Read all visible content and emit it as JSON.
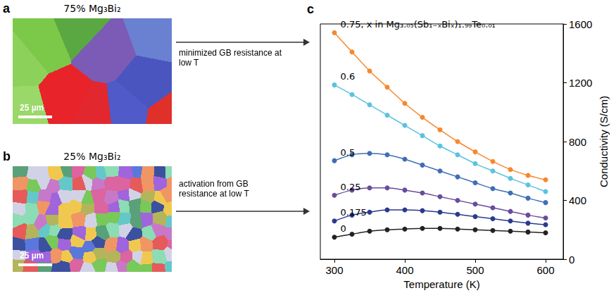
{
  "panels": [
    {
      "letter": "a",
      "title": "75% Mg₃Bi₂",
      "scale_bar": "25 µm",
      "arrow_label": "minimized GB resistance at low T"
    },
    {
      "letter": "b",
      "title": "25% Mg₃Bi₂",
      "scale_bar": "25 µm",
      "arrow_label": "activation from GB resistance at low T"
    }
  ],
  "chart_data": {
    "letter": "c",
    "type": "line",
    "x_label": "Temperature (K)",
    "y_label": "Conductivity (S/cm)",
    "annotation": "0.75, x in Mg₃.₀₅(Sb₁₋ₓBiₓ)₁.₉₉Te₀.₀₁",
    "x": [
      300,
      325,
      350,
      375,
      400,
      425,
      450,
      475,
      500,
      525,
      550,
      575,
      600
    ],
    "series": [
      {
        "name": "0.75",
        "color": "#f5882e",
        "values": [
          1540,
          1410,
          1280,
          1170,
          1060,
          965,
          880,
          800,
          730,
          665,
          610,
          570,
          540
        ]
      },
      {
        "name": "0.6",
        "color": "#5bc3df",
        "values": [
          1185,
          1120,
          1050,
          980,
          910,
          840,
          770,
          710,
          650,
          600,
          550,
          505,
          460
        ]
      },
      {
        "name": "0.5",
        "color": "#3e6fb6",
        "values": [
          670,
          710,
          720,
          710,
          680,
          640,
          600,
          560,
          520,
          480,
          450,
          415,
          385
        ]
      },
      {
        "name": "0.25",
        "color": "#6a4c9c",
        "values": [
          435,
          470,
          485,
          485,
          470,
          450,
          425,
          400,
          375,
          350,
          325,
          300,
          280
        ]
      },
      {
        "name": "0.175",
        "color": "#2b3a8f",
        "values": [
          260,
          300,
          320,
          335,
          335,
          330,
          320,
          305,
          290,
          275,
          260,
          245,
          235
        ]
      },
      {
        "name": "0",
        "color": "#222222",
        "values": [
          150,
          170,
          190,
          200,
          205,
          210,
          210,
          205,
          200,
          195,
          190,
          185,
          180
        ]
      }
    ],
    "xlim": [
      280,
      625
    ],
    "xticks": [
      300,
      400,
      500,
      600
    ],
    "ylim": [
      0,
      1600
    ],
    "yticks": [
      0,
      400,
      800,
      1200,
      1600
    ],
    "grid": false,
    "marker": "circle"
  }
}
